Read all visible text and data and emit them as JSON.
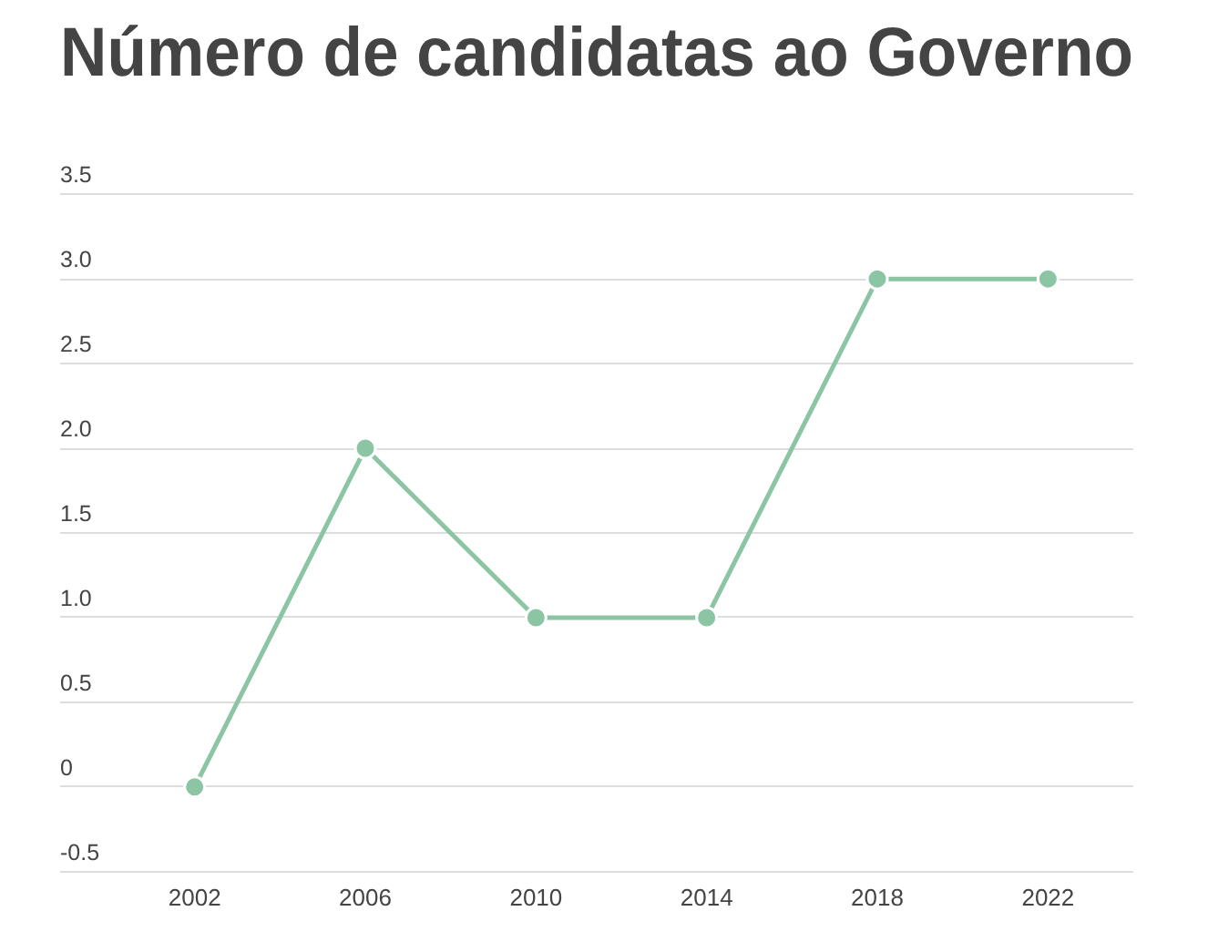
{
  "chart_data": {
    "type": "line",
    "title": "Número de candidatas ao Governo",
    "categories": [
      "2002",
      "2006",
      "2010",
      "2014",
      "2018",
      "2022"
    ],
    "values": [
      0,
      2,
      1,
      1,
      3,
      3
    ],
    "color": "#8cc5a3",
    "ylim": [
      -0.5,
      3.5
    ],
    "yticks": [
      -0.5,
      0,
      0.5,
      {
        "value": 1,
        "label": "1.0"
      },
      1.5,
      {
        "value": 2,
        "label": "2.0"
      },
      2.5,
      {
        "value": 3,
        "label": "3.0"
      },
      3.5
    ],
    "grid": "y",
    "marker": "circle",
    "line_style": "solid",
    "legend": false
  }
}
